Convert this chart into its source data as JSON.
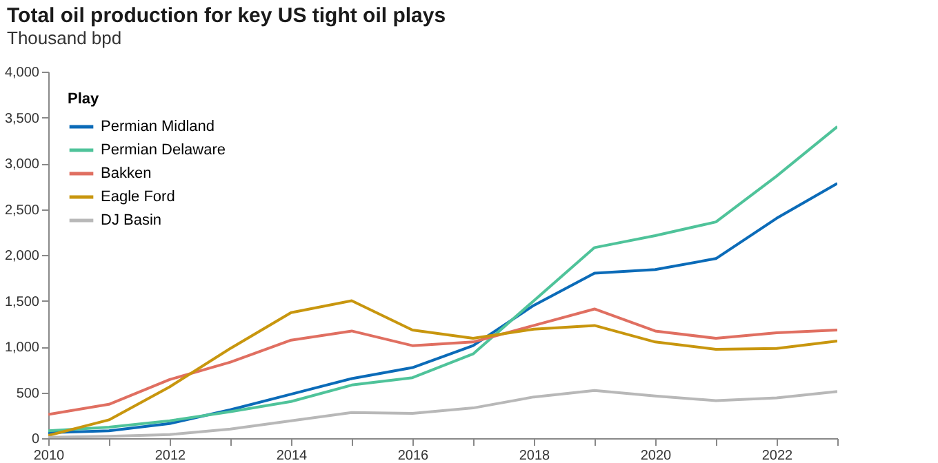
{
  "chart_data": {
    "type": "line",
    "title": "Total oil production for key US tight oil plays",
    "subtitle": "Thousand bpd",
    "legend_title": "Play",
    "legend": "top left",
    "grid": false,
    "x": [
      2010,
      2011,
      2012,
      2013,
      2014,
      2015,
      2016,
      2017,
      2018,
      2019,
      2020,
      2021,
      2022,
      2023
    ],
    "xlim": [
      2010,
      2023
    ],
    "xticks": [
      2010,
      {
        "value": 2011,
        "label": null
      },
      2012,
      {
        "value": 2013,
        "label": null
      },
      2014,
      {
        "value": 2015,
        "label": null
      },
      2016,
      {
        "value": 2017,
        "label": null
      },
      2018,
      {
        "value": 2019,
        "label": null
      },
      2020,
      {
        "value": 2021,
        "label": null
      },
      2022,
      {
        "value": 2023,
        "label": null
      }
    ],
    "ylim": [
      0,
      4000
    ],
    "yticks": [
      0,
      500,
      {
        "value": 1000,
        "label": "1,000"
      },
      {
        "value": 1500,
        "label": "1,500"
      },
      {
        "value": 2000,
        "label": "2,000"
      },
      {
        "value": 2500,
        "label": "2,500"
      },
      {
        "value": 3000,
        "label": "3,000"
      },
      {
        "value": 3500,
        "label": "3,500"
      },
      {
        "value": 4000,
        "label": "4,000"
      }
    ],
    "series": [
      {
        "name": "Permian Midland",
        "color": "#0b6bb8",
        "values": [
          60,
          80,
          160,
          310,
          480,
          650,
          770,
          1010,
          1450,
          1800,
          1840,
          1960,
          2400,
          2780
        ]
      },
      {
        "name": "Permian Delaware",
        "color": "#4fc39a",
        "values": [
          80,
          120,
          190,
          290,
          400,
          580,
          660,
          920,
          1500,
          2080,
          2210,
          2360,
          2860,
          3400
        ]
      },
      {
        "name": "Bakken",
        "color": "#e06f61",
        "values": [
          260,
          370,
          640,
          830,
          1070,
          1170,
          1010,
          1050,
          1230,
          1410,
          1170,
          1090,
          1150,
          1180
        ]
      },
      {
        "name": "Eagle Ford",
        "color": "#c8960e",
        "values": [
          30,
          200,
          560,
          980,
          1370,
          1500,
          1180,
          1090,
          1190,
          1230,
          1050,
          970,
          980,
          1060
        ]
      },
      {
        "name": "DJ Basin",
        "color": "#b8b8b8",
        "values": [
          10,
          20,
          40,
          100,
          190,
          280,
          270,
          330,
          450,
          520,
          460,
          410,
          440,
          510
        ]
      }
    ]
  }
}
